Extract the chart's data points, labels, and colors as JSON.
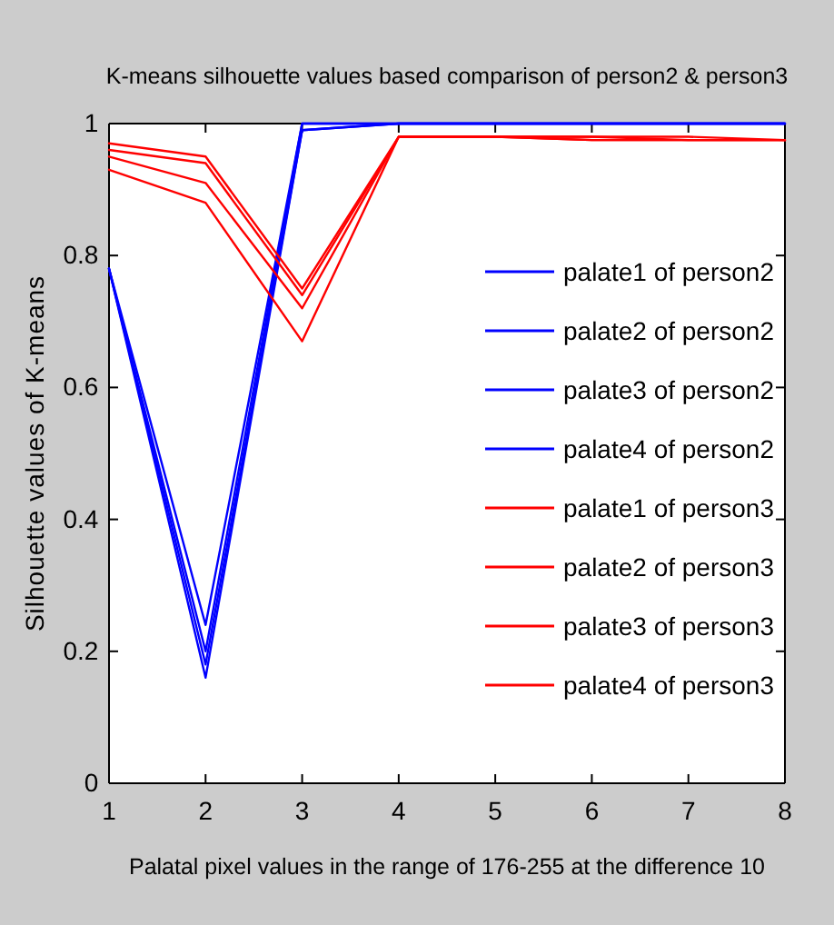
{
  "chart_data": {
    "type": "line",
    "title": "K-means silhouette values based comparison of person2 & person3",
    "xlabel": "Palatal pixel values in the range of 176-255 at the difference 10",
    "ylabel": "Silhouette values of K-means",
    "x": [
      1,
      2,
      3,
      4,
      5,
      6,
      7,
      8
    ],
    "series": [
      {
        "name": "palate1 of person2",
        "color": "#0000ff",
        "values": [
          0.78,
          0.16,
          0.99,
          1,
          1,
          1,
          1,
          1
        ]
      },
      {
        "name": "palate2 of person2",
        "color": "#0000ff",
        "values": [
          0.78,
          0.18,
          0.99,
          1,
          1,
          1,
          1,
          1
        ]
      },
      {
        "name": "palate3 of person2",
        "color": "#0000ff",
        "values": [
          0.78,
          0.2,
          1,
          1,
          1,
          1,
          1,
          1
        ]
      },
      {
        "name": "palate4 of person2",
        "color": "#0000ff",
        "values": [
          0.78,
          0.24,
          1,
          1,
          1,
          1,
          1,
          1
        ]
      },
      {
        "name": "palate1 of person3",
        "color": "#ff0000",
        "values": [
          0.97,
          0.95,
          0.75,
          0.98,
          0.98,
          0.975,
          0.975,
          0.975
        ]
      },
      {
        "name": "palate2 of person3",
        "color": "#ff0000",
        "values": [
          0.96,
          0.94,
          0.74,
          0.98,
          0.98,
          0.98,
          0.975,
          0.975
        ]
      },
      {
        "name": "palate3 of person3",
        "color": "#ff0000",
        "values": [
          0.95,
          0.91,
          0.72,
          0.98,
          0.98,
          0.98,
          0.98,
          0.975
        ]
      },
      {
        "name": "palate4 of person3",
        "color": "#ff0000",
        "values": [
          0.93,
          0.88,
          0.67,
          0.98,
          0.98,
          0.975,
          0.975,
          0.975
        ]
      }
    ],
    "xlim": [
      1,
      8
    ],
    "xticks": [
      1,
      2,
      3,
      4,
      5,
      6,
      7,
      8
    ],
    "ylim": [
      0,
      1
    ],
    "yticks": [
      0,
      0.2,
      0.4,
      0.6,
      0.8,
      1
    ],
    "grid": false,
    "legend": "right",
    "marker": "none",
    "line_style": "solid"
  }
}
